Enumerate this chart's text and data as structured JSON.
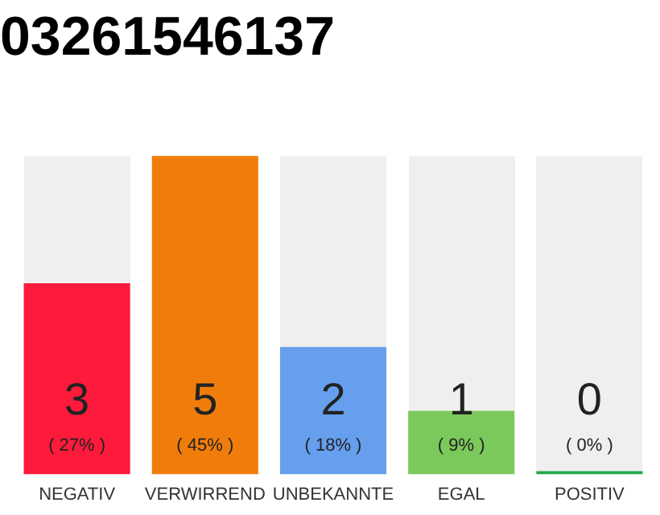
{
  "chart_data": {
    "type": "bar",
    "title": "03261546137",
    "categories": [
      "NEGATIV",
      "VERWIRREND",
      "UNBEKANNTE",
      "EGAL",
      "POSITIV"
    ],
    "values": [
      3,
      5,
      2,
      1,
      0
    ],
    "colors": [
      "#fe1a3b",
      "#f07d0b",
      "#659fee",
      "#7cc95b",
      "#22a84a"
    ],
    "value_labels": [
      "3\n( 27% )",
      "5\n( 45% )",
      "2\n( 18% )",
      "1\n( 9% )",
      "0\n( 0% )"
    ],
    "tick_labels": "x",
    "grid": false,
    "legend": false
  }
}
